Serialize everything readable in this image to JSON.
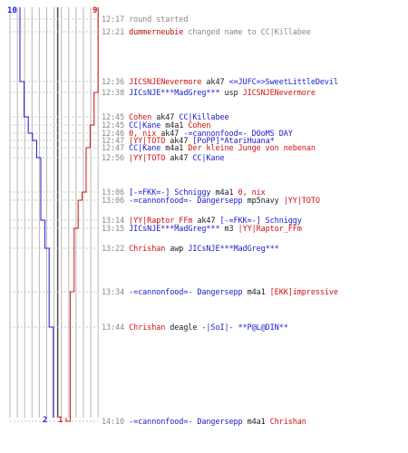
{
  "colors": {
    "blue": "#1a1ad0",
    "red": "#d01010",
    "grid": "#b8b8b8",
    "center": "#555555",
    "time": "#888888",
    "event": "#888888"
  },
  "team_counts": {
    "blue_start": "10",
    "red_start": "9",
    "blue_end": "2",
    "red_end": "1"
  },
  "events": [
    {
      "time": "12:17",
      "parts": [
        {
          "t": "round started",
          "c": "g"
        }
      ]
    },
    {
      "time": "12:21",
      "parts": [
        {
          "t": "dummerneubie",
          "c": "d"
        },
        {
          "t": " changed name to CC|Killabee",
          "c": "g"
        }
      ]
    },
    {
      "time": "12:36",
      "parts": [
        {
          "t": "JICSNJENevermore",
          "c": "r"
        },
        {
          "t": " ak47 ",
          "c": "k"
        },
        {
          "t": "<=JUFC=>SweetLittleDevil",
          "c": "b"
        }
      ]
    },
    {
      "time": "12:38",
      "parts": [
        {
          "t": "JICsNJE***MadGreg***",
          "c": "b"
        },
        {
          "t": " usp ",
          "c": "k"
        },
        {
          "t": "JICSNJENevermore",
          "c": "r"
        }
      ]
    },
    {
      "time": "12:45",
      "parts": [
        {
          "t": "Cohen",
          "c": "r"
        },
        {
          "t": " ak47 ",
          "c": "k"
        },
        {
          "t": "CC|Killabee",
          "c": "b"
        }
      ]
    },
    {
      "time": "12:45",
      "parts": [
        {
          "t": "CC|Kane",
          "c": "b"
        },
        {
          "t": " m4a1 ",
          "c": "k"
        },
        {
          "t": "Cohen",
          "c": "r"
        }
      ]
    },
    {
      "time": "12:46",
      "parts": [
        {
          "t": "0, nix",
          "c": "r"
        },
        {
          "t": " ak47 ",
          "c": "k"
        },
        {
          "t": "-=cannonfood=- DOoMS DAY",
          "c": "b"
        }
      ]
    },
    {
      "time": "12:47",
      "parts": [
        {
          "t": "|YY|TOTO",
          "c": "r"
        },
        {
          "t": " ak47 ",
          "c": "k"
        },
        {
          "t": "[PoPP]*AtariHuana*",
          "c": "b"
        }
      ]
    },
    {
      "time": "12:47",
      "parts": [
        {
          "t": "CC|Kane",
          "c": "b"
        },
        {
          "t": " m4a1 ",
          "c": "k"
        },
        {
          "t": "Der kleine Junge von nebenan",
          "c": "r"
        }
      ]
    },
    {
      "time": "12:56",
      "parts": [
        {
          "t": "|YY|TOTO",
          "c": "r"
        },
        {
          "t": " ak47 ",
          "c": "k"
        },
        {
          "t": "CC|Kane",
          "c": "b"
        }
      ]
    },
    {
      "time": "13:06",
      "parts": [
        {
          "t": "[-=FKK=-] Schniggy",
          "c": "b"
        },
        {
          "t": " m4a1 ",
          "c": "k"
        },
        {
          "t": "0, nix",
          "c": "r"
        }
      ]
    },
    {
      "time": "13:06",
      "parts": [
        {
          "t": "-=cannonfood=- Dangersepp",
          "c": "b"
        },
        {
          "t": " mp5navy ",
          "c": "k"
        },
        {
          "t": "|YY|TOTO",
          "c": "r"
        }
      ]
    },
    {
      "time": "13:14",
      "parts": [
        {
          "t": "|YY|Raptor_FFm",
          "c": "r"
        },
        {
          "t": " ak47 ",
          "c": "k"
        },
        {
          "t": "[-=FKK=-] Schniggy",
          "c": "b"
        }
      ]
    },
    {
      "time": "13:15",
      "parts": [
        {
          "t": "JICsNJE***MadGreg***",
          "c": "b"
        },
        {
          "t": " m3 ",
          "c": "k"
        },
        {
          "t": "|YY|Raptor_FFm",
          "c": "r"
        }
      ]
    },
    {
      "time": "13:22",
      "parts": [
        {
          "t": "Chrishan",
          "c": "r"
        },
        {
          "t": " awp ",
          "c": "k"
        },
        {
          "t": "JICsNJE***MadGreg***",
          "c": "b"
        }
      ]
    },
    {
      "time": "13:34",
      "parts": [
        {
          "t": "-=cannonfood=- Dangersepp",
          "c": "b"
        },
        {
          "t": " m4a1 ",
          "c": "k"
        },
        {
          "t": "[EKK]impressive",
          "c": "r"
        }
      ]
    },
    {
      "time": "13:44",
      "parts": [
        {
          "t": "Chrishan",
          "c": "r"
        },
        {
          "t": " deagle ",
          "c": "k"
        },
        {
          "t": "-|SoI|- **P@L@DIN**",
          "c": "b"
        }
      ]
    },
    {
      "time": "14:10",
      "parts": [
        {
          "t": "-=cannonfood=- Dangersepp",
          "c": "b"
        },
        {
          "t": " m4a1 ",
          "c": "k"
        },
        {
          "t": "Chrishan",
          "c": "r"
        }
      ]
    }
  ]
}
